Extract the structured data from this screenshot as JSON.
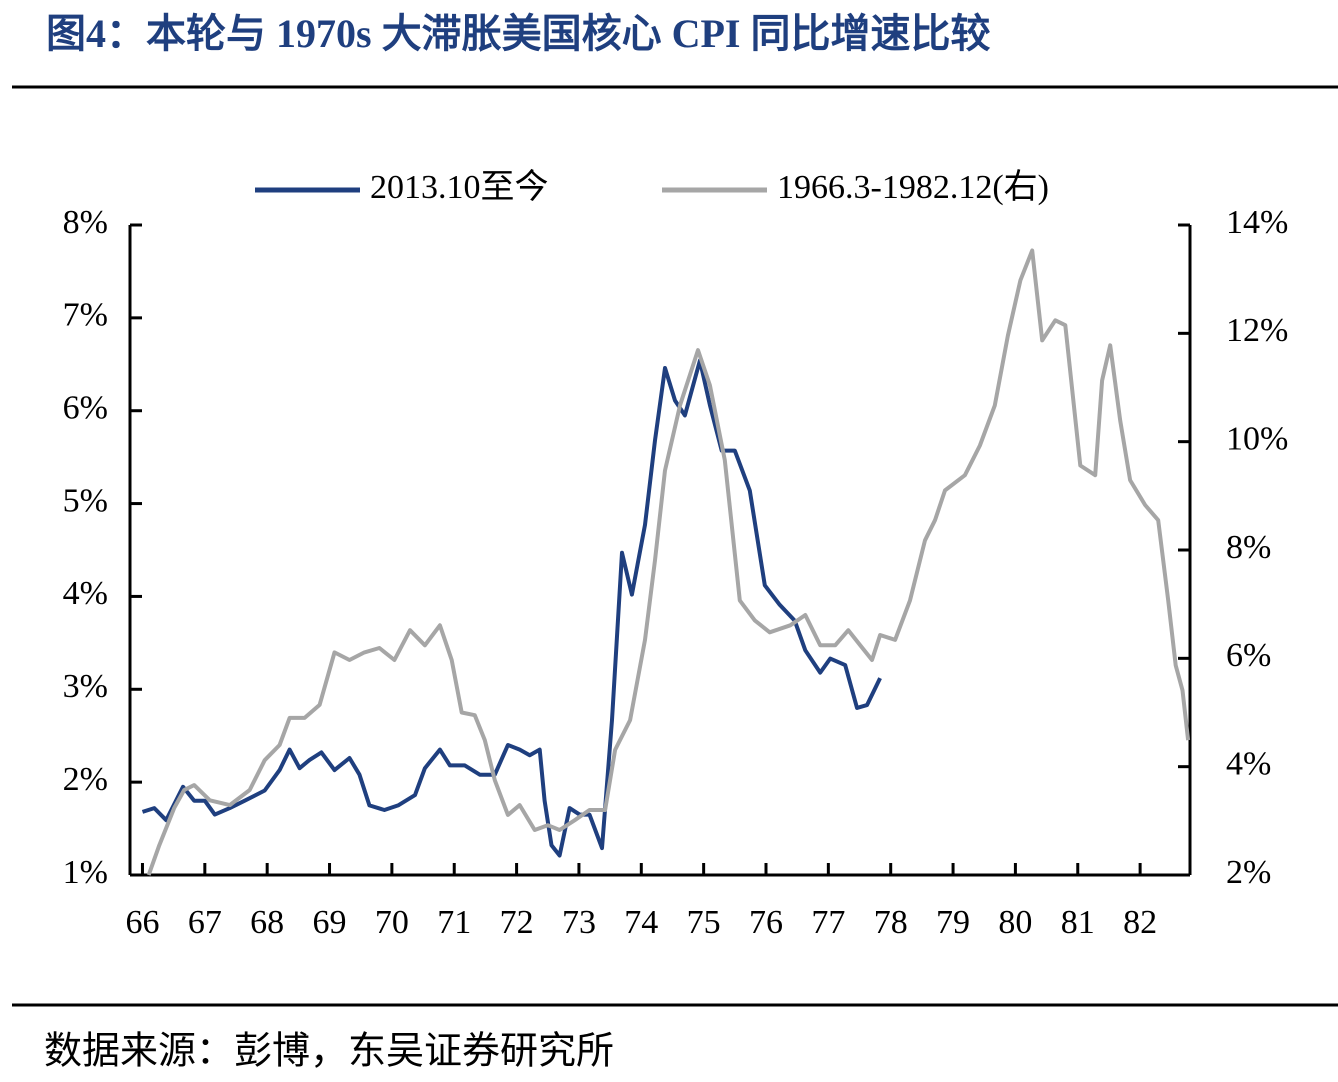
{
  "title": "图4：本轮与 1970s 大滞胀美国核心 CPI 同比增速比较",
  "source": "数据来源：彭博，东吴证券研究所",
  "chart_data": {
    "type": "line",
    "series": [
      {
        "name": "2013.10至今",
        "color": "#1f3f7f",
        "axis": "y",
        "x": [
          66.0,
          66.19,
          66.38,
          66.65,
          66.83,
          67.0,
          67.16,
          67.4,
          67.64,
          67.96,
          68.2,
          68.36,
          68.52,
          68.68,
          68.87,
          69.08,
          69.32,
          69.48,
          69.64,
          69.88,
          70.1,
          70.37,
          70.53,
          70.77,
          70.93,
          71.17,
          71.41,
          71.65,
          71.86,
          72.05,
          72.21,
          72.37,
          72.45,
          72.56,
          72.69,
          72.85,
          73.01,
          73.17,
          73.37,
          73.53,
          73.69,
          73.85,
          74.06,
          74.22,
          74.38,
          74.54,
          74.7,
          74.94,
          75.1,
          75.29,
          75.5,
          75.74,
          75.98,
          76.22,
          76.46,
          76.63,
          76.87,
          77.03,
          77.27,
          77.46,
          77.62,
          77.83
        ],
        "values": [
          1.68,
          1.72,
          1.59,
          1.95,
          1.8,
          1.8,
          1.65,
          1.72,
          1.8,
          1.91,
          2.13,
          2.35,
          2.15,
          2.24,
          2.32,
          2.13,
          2.26,
          2.08,
          1.75,
          1.7,
          1.75,
          1.86,
          2.15,
          2.35,
          2.18,
          2.18,
          2.08,
          2.08,
          2.4,
          2.35,
          2.29,
          2.35,
          1.8,
          1.32,
          1.21,
          1.72,
          1.65,
          1.65,
          1.29,
          2.67,
          4.47,
          4.02,
          4.77,
          5.68,
          6.46,
          6.11,
          5.95,
          6.54,
          6.06,
          5.57,
          5.57,
          5.14,
          4.12,
          3.91,
          3.74,
          3.42,
          3.18,
          3.33,
          3.26,
          2.8,
          2.83,
          3.12
        ]
      },
      {
        "name": "1966.3-1982.12(右)",
        "color": "#a6a6a6",
        "axis": "y2",
        "x": [
          66.1,
          66.27,
          66.51,
          66.67,
          66.83,
          67.08,
          67.4,
          67.72,
          67.96,
          68.2,
          68.36,
          68.6,
          68.84,
          69.08,
          69.32,
          69.56,
          69.8,
          70.04,
          70.29,
          70.53,
          70.77,
          70.96,
          71.12,
          71.33,
          71.49,
          71.65,
          71.86,
          72.05,
          72.29,
          72.5,
          72.69,
          72.93,
          73.17,
          73.42,
          73.58,
          73.82,
          74.06,
          74.22,
          74.38,
          74.62,
          74.78,
          74.91,
          75.1,
          75.34,
          75.58,
          75.82,
          76.06,
          76.39,
          76.63,
          76.87,
          77.11,
          77.32,
          77.51,
          77.7,
          77.83,
          78.07,
          78.31,
          78.55,
          78.71,
          78.87,
          79.19,
          79.43,
          79.67,
          79.88,
          80.08,
          80.27,
          80.43,
          80.64,
          80.8,
          81.04,
          81.28,
          81.39,
          81.52,
          81.68,
          81.84,
          82.08,
          82.29,
          82.45,
          82.57,
          82.68,
          82.77
        ],
        "values": [
          2.0,
          2.55,
          3.24,
          3.57,
          3.66,
          3.38,
          3.29,
          3.57,
          4.12,
          4.4,
          4.9,
          4.9,
          5.14,
          6.11,
          5.97,
          6.11,
          6.19,
          5.97,
          6.52,
          6.24,
          6.61,
          5.97,
          5.0,
          4.95,
          4.49,
          3.75,
          3.11,
          3.29,
          2.83,
          2.92,
          2.83,
          3.01,
          3.2,
          3.2,
          4.31,
          4.86,
          6.34,
          7.81,
          9.47,
          10.67,
          11.23,
          11.69,
          11.04,
          9.66,
          7.07,
          6.7,
          6.48,
          6.61,
          6.8,
          6.24,
          6.24,
          6.52,
          6.24,
          5.97,
          6.43,
          6.34,
          7.07,
          8.18,
          8.55,
          9.1,
          9.38,
          9.93,
          10.67,
          11.96,
          12.98,
          13.53,
          11.87,
          12.24,
          12.15,
          9.56,
          9.38,
          11.13,
          11.78,
          10.39,
          9.29,
          8.83,
          8.55,
          7.07,
          5.87,
          5.41,
          4.49
        ]
      }
    ],
    "xlim": [
      65.8,
      82.8
    ],
    "xticks": [
      66,
      67,
      68,
      69,
      70,
      71,
      72,
      73,
      74,
      75,
      76,
      77,
      78,
      79,
      80,
      81,
      82
    ],
    "ylim": [
      1,
      8
    ],
    "yticks": [
      {
        "value": 1,
        "label": "1%"
      },
      {
        "value": 2,
        "label": "2%"
      },
      {
        "value": 3,
        "label": "3%"
      },
      {
        "value": 4,
        "label": "4%"
      },
      {
        "value": 5,
        "label": "5%"
      },
      {
        "value": 6,
        "label": "6%"
      },
      {
        "value": 7,
        "label": "7%"
      },
      {
        "value": 8,
        "label": "8%"
      }
    ],
    "y2lim": [
      2,
      14
    ],
    "y2ticks": [
      {
        "value": 2,
        "label": "2%"
      },
      {
        "value": 4,
        "label": "4%"
      },
      {
        "value": 6,
        "label": "6%"
      },
      {
        "value": 8,
        "label": "8%"
      },
      {
        "value": 10,
        "label": "10%"
      },
      {
        "value": 12,
        "label": "12%"
      },
      {
        "value": 14,
        "label": "14%"
      }
    ],
    "legend": "top"
  }
}
